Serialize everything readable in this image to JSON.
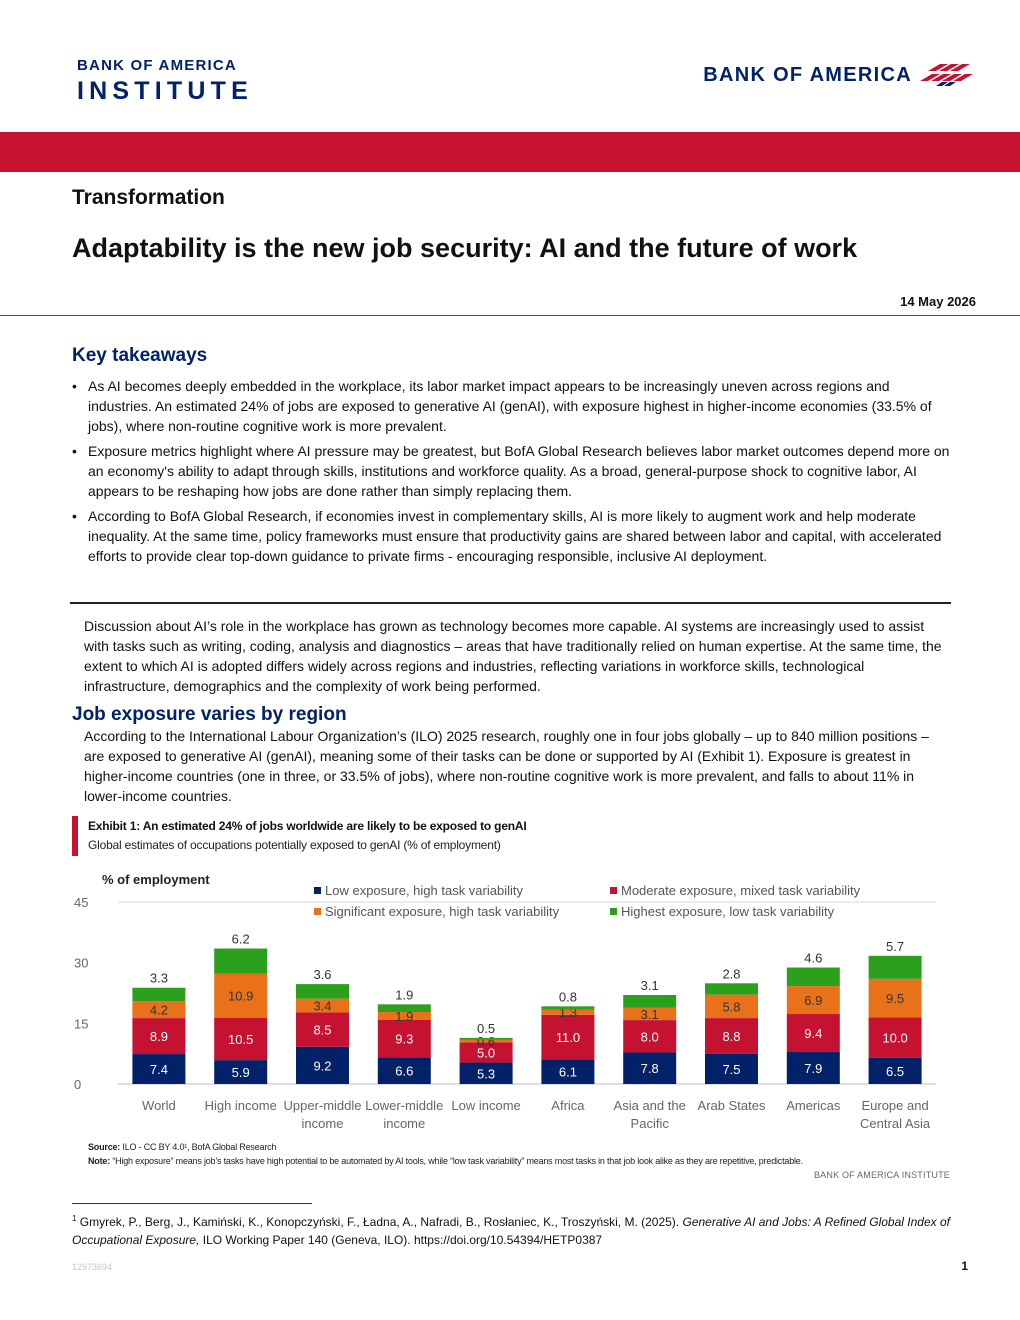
{
  "header": {
    "institute_logo_line1": "BANK OF AMERICA",
    "institute_logo_line2": "INSTITUTE",
    "bank_logo_text": "BANK OF AMERICA",
    "brand_color": "#012169",
    "accent_color": "#c41230"
  },
  "article": {
    "section": "Transformation",
    "title": "Adaptability is the new job security: AI and the future of work",
    "date": "14 May 2026"
  },
  "key_takeaways": {
    "heading": "Key takeaways",
    "items": [
      "As AI becomes deeply embedded in the workplace, its labor market impact appears to be increasingly uneven across regions and industries. An estimated 24% of jobs are exposed to generative AI (genAI), with exposure highest in higher-income economies (33.5% of jobs), where non-routine cognitive work is more prevalent.",
      "Exposure metrics highlight where AI pressure may be greatest, but BofA Global Research believes labor market outcomes depend more on an economy's ability to adapt through skills, institutions and workforce quality. As a broad, general-purpose shock to cognitive labor, AI appears to be reshaping how jobs are done rather than simply replacing them.",
      "According to BofA Global Research, if economies invest in complementary skills, AI is more likely to augment work and help moderate inequality. At the same time, policy frameworks must ensure that productivity gains are shared between labor and capital, with accelerated efforts to provide clear top-down guidance to private firms - encouraging responsible, inclusive AI deployment."
    ]
  },
  "body": {
    "intro": "Discussion about AI’s role in the workplace has grown as technology becomes more capable. AI systems are increasingly used to assist with tasks such as writing, coding, analysis and diagnostics – areas that have traditionally relied on human expertise. At the same time, the extent to which AI is adopted differs widely across regions and industries, reflecting variations in workforce skills, technological infrastructure, demographics and the complexity of work being performed.",
    "section_heading": "Job exposure varies by region",
    "section_text": "According to the International Labour Organization’s (ILO) 2025 research, roughly one in four jobs globally – up to 840 million positions – are exposed to generative AI (genAI), meaning some of their tasks can be done or supported by AI (Exhibit 1). Exposure is greatest in higher-income countries (one in three, or 33.5% of jobs), where non-routine cognitive work is more prevalent, and falls to about 11% in lower-income countries."
  },
  "exhibit": {
    "title": "Exhibit 1: An estimated 24% of jobs worldwide are likely to be exposed to genAI",
    "subtitle": "Global estimates of occupations potentially exposed to genAI (% of employment)"
  },
  "chart_data": {
    "type": "bar",
    "stacked": true,
    "ylabel": "%  of employment",
    "ylim": [
      0,
      45
    ],
    "yticks": [
      0,
      15,
      30,
      45
    ],
    "grid": false,
    "legend_position": "top",
    "categories": [
      "World",
      "High income",
      "Upper-middle income",
      "Lower-middle income",
      "Low income",
      "Africa",
      "Asia and the Pacific",
      "Arab States",
      "Americas",
      "Europe and Central Asia"
    ],
    "category_lines": [
      [
        "World"
      ],
      [
        "High income"
      ],
      [
        "Upper-middle",
        "income"
      ],
      [
        "Lower-middle",
        "income"
      ],
      [
        "Low income"
      ],
      [
        "Africa"
      ],
      [
        "Asia and the",
        "Pacific"
      ],
      [
        "Arab States"
      ],
      [
        "Americas"
      ],
      [
        "Europe and",
        "Central Asia"
      ]
    ],
    "series": [
      {
        "name": "Low exposure, high task variability",
        "color": "#012169",
        "values": [
          7.4,
          5.9,
          9.2,
          6.6,
          5.3,
          6.1,
          7.8,
          7.5,
          7.9,
          6.5
        ]
      },
      {
        "name": "Moderate exposure, mixed task variability",
        "color": "#c41230",
        "values": [
          8.9,
          10.5,
          8.5,
          9.3,
          5.0,
          11.0,
          8.0,
          8.8,
          9.4,
          10.0
        ]
      },
      {
        "name": "Significant exposure, high task variability",
        "color": "#e8711a",
        "values": [
          4.2,
          10.9,
          3.4,
          1.9,
          0.6,
          1.3,
          3.1,
          5.8,
          6.9,
          9.5
        ]
      },
      {
        "name": "Highest exposure, low task variability",
        "color": "#2ca01c",
        "values": [
          3.3,
          6.2,
          3.6,
          1.9,
          0.5,
          0.8,
          3.1,
          2.8,
          4.6,
          5.7
        ]
      }
    ]
  },
  "notes": {
    "source_label": "Source:",
    "source_text": "ILO - CC BY 4.0¹, BofA Global Research",
    "note_label": "Note:",
    "note_text": "“High exposure” means job’s tasks have high potential to be automated by AI tools, while “low task variability” means most tasks in that job look alike as they are repetitive, predictable.",
    "credit": "BANK OF AMERICA INSTITUTE"
  },
  "footnote": {
    "marker": "1",
    "authors": "Gmyrek, P., Berg, J., Kamiński, K., Konopczyński, F., Ładna, A., Nafradi, B., Rosłaniec, K., Troszyński, M. (2025).",
    "title": "Generative AI and Jobs: A Refined Global Index of Occupational Exposure,",
    "rest": "ILO Working Paper 140 (Geneva, ILO). https://doi.org/10.54394/HETP0387"
  },
  "footer": {
    "doc_id": "12973694",
    "page": "1"
  }
}
